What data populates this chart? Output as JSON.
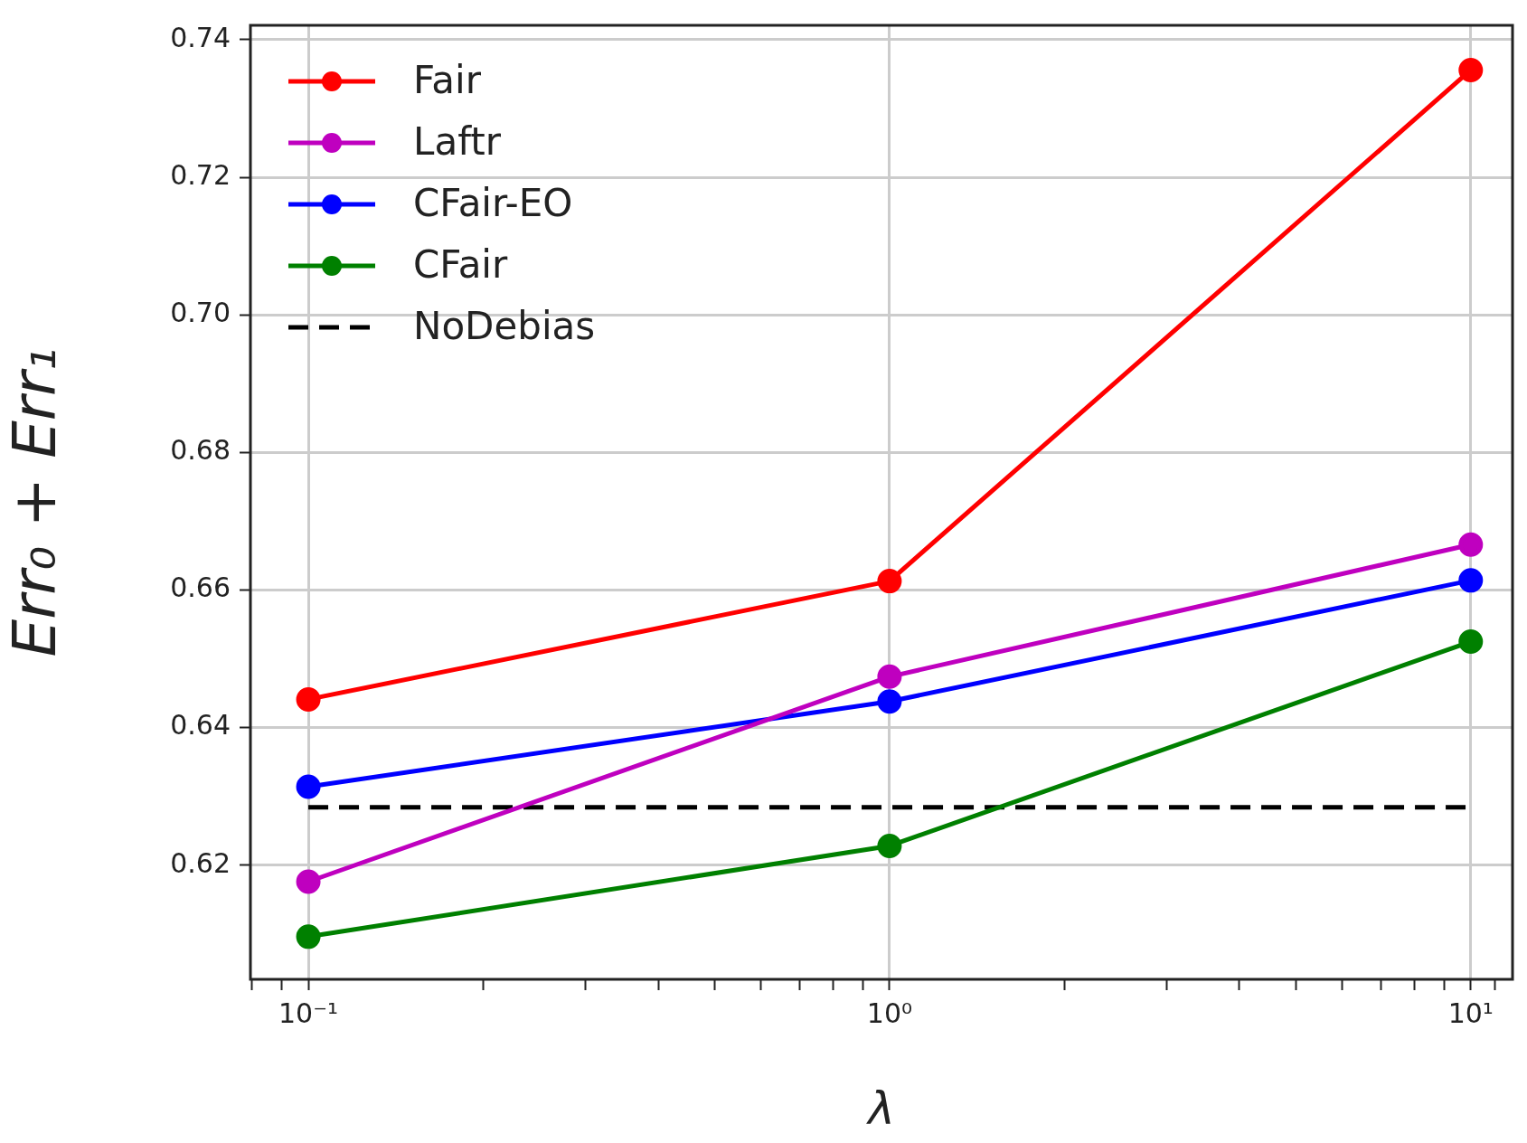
{
  "chart_data": {
    "type": "line",
    "xlabel": "λ",
    "ylabel": "Err₀ + Err₁",
    "log": "x",
    "x": [
      0.1,
      1,
      10
    ],
    "xlim": [
      0.0795,
      11.8
    ],
    "xticks": [
      {
        "value": 0.08,
        "label": null
      },
      {
        "value": 0.09,
        "label": null
      },
      {
        "value": 0.1,
        "label": "10⁻¹"
      },
      {
        "value": 0.2,
        "label": null
      },
      {
        "value": 0.3,
        "label": null
      },
      {
        "value": 0.4,
        "label": null
      },
      {
        "value": 0.5,
        "label": null
      },
      {
        "value": 0.6,
        "label": null
      },
      {
        "value": 0.7,
        "label": null
      },
      {
        "value": 0.8,
        "label": null
      },
      {
        "value": 0.9,
        "label": null
      },
      {
        "value": 1,
        "label": "10⁰"
      },
      {
        "value": 2,
        "label": null
      },
      {
        "value": 3,
        "label": null
      },
      {
        "value": 4,
        "label": null
      },
      {
        "value": 5,
        "label": null
      },
      {
        "value": 6,
        "label": null
      },
      {
        "value": 7,
        "label": null
      },
      {
        "value": 8,
        "label": null
      },
      {
        "value": 9,
        "label": null
      },
      {
        "value": 10,
        "label": "10¹"
      },
      {
        "value": 11,
        "label": null
      }
    ],
    "ylim": [
      0.6034,
      0.7421
    ],
    "yticks": [
      0.62,
      0.64,
      0.66,
      0.68,
      {
        "value": 0.7,
        "label": "0.70"
      },
      0.72,
      0.74
    ],
    "grid": true,
    "legend": "top left",
    "marker": "circle",
    "line_style": "solid",
    "series": [
      {
        "name": "Fair",
        "color": "#ff0000",
        "values": [
          0.6441,
          0.6613,
          0.7356
        ]
      },
      {
        "name": "Laftr",
        "color": "#bf00bf",
        "values": [
          0.6176,
          0.6474,
          0.6666
        ]
      },
      {
        "name": "CFair-EO",
        "color": "#0000ff",
        "values": [
          0.6314,
          0.6438,
          0.6614
        ]
      },
      {
        "name": "CFair",
        "color": "#008000",
        "values": [
          0.6096,
          0.6228,
          0.6525
        ]
      },
      {
        "name": "NoDebias",
        "color": "#000000",
        "x": [
          0.1,
          10
        ],
        "values": [
          0.6284,
          0.6284
        ],
        "line_style": "dashed",
        "marker": "none"
      }
    ]
  }
}
